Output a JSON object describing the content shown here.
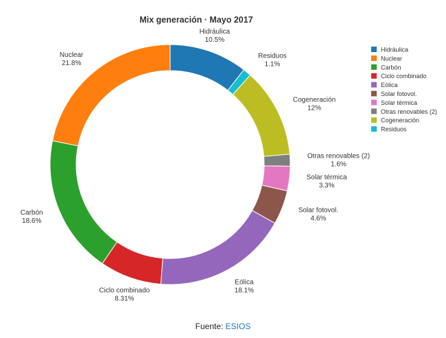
{
  "chart_data": {
    "type": "pie",
    "donut": true,
    "title": "Mix generación · Mayo 2017",
    "slices": [
      {
        "label": "Hidráulica",
        "display": "10.5%",
        "value": 10.5,
        "color": "#1f77b4"
      },
      {
        "label": "Residuos",
        "display": "1.1%",
        "value": 1.1,
        "color": "#17becf"
      },
      {
        "label": "Cogeneración",
        "display": "12%",
        "value": 12,
        "color": "#bcbd22"
      },
      {
        "label": "Otras renovables (2)",
        "display": "1.6%",
        "value": 1.6,
        "color": "#7f7f7f"
      },
      {
        "label": "Solar térmica",
        "display": "3.3%",
        "value": 3.3,
        "color": "#e377c2"
      },
      {
        "label": "Solar fotovol.",
        "display": "4.6%",
        "value": 4.6,
        "color": "#8c564b"
      },
      {
        "label": "Eólica",
        "display": "18.1%",
        "value": 18.1,
        "color": "#9467bd"
      },
      {
        "label": "Ciclo combinado",
        "display": "8.31%",
        "value": 8.31,
        "color": "#d62728"
      },
      {
        "label": "Carbón",
        "display": "18.6%",
        "value": 18.6,
        "color": "#2ca02c"
      },
      {
        "label": "Nuclear",
        "display": "21.8%",
        "value": 21.8,
        "color": "#ff7f0e"
      }
    ],
    "legend": {
      "placement": "right",
      "entries": [
        {
          "label": "Hidráulica",
          "color": "#1f77b4"
        },
        {
          "label": "Nuclear",
          "color": "#ff7f0e"
        },
        {
          "label": "Carbón",
          "color": "#2ca02c"
        },
        {
          "label": "Ciclo combinado",
          "color": "#d62728"
        },
        {
          "label": "Eólica",
          "color": "#9467bd"
        },
        {
          "label": "Solar fotovol.",
          "color": "#8c564b"
        },
        {
          "label": "Solar térmica",
          "color": "#e377c2"
        },
        {
          "label": "Otras renovables (2)",
          "color": "#7f7f7f"
        },
        {
          "label": "Cogeneración",
          "color": "#bcbd22"
        },
        {
          "label": "Residuos",
          "color": "#17becf"
        }
      ]
    }
  },
  "source": {
    "prefix": "Fuente: ",
    "link_text": "ESIOS"
  }
}
